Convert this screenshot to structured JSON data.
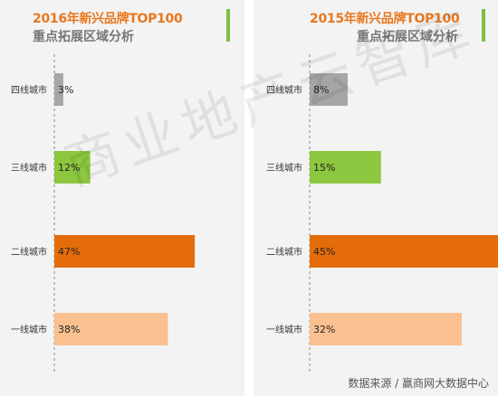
{
  "chart_data": [
    {
      "type": "bar",
      "title": "2016年新兴品牌TOP100",
      "subtitle": "重点拓展区域分析",
      "categories": [
        "四线城市",
        "三线城市",
        "二线城市",
        "一线城市"
      ],
      "values": [
        3,
        12,
        47,
        38
      ],
      "value_labels": [
        "3%",
        "12%",
        "47%",
        "38%"
      ],
      "colors": [
        "#a6a6a6",
        "#8dc63f",
        "#e46c0a",
        "#fac090"
      ],
      "xlim": [
        0,
        50
      ]
    },
    {
      "type": "bar",
      "title": "2015年新兴品牌TOP100",
      "subtitle": "重点拓展区域分析",
      "categories": [
        "四线城市",
        "三线城市",
        "二线城市",
        "一线城市"
      ],
      "values": [
        8,
        15,
        45,
        32
      ],
      "value_labels": [
        "8%",
        "15%",
        "45%",
        "32%"
      ],
      "colors": [
        "#a6a6a6",
        "#8dc63f",
        "#e46c0a",
        "#fac090"
      ],
      "xlim": [
        0,
        50
      ]
    }
  ],
  "watermark": "商业地产云智库",
  "source": "数据来源 / 赢商网大数据中心",
  "accent_color": "#7cc142",
  "title_color": "#e8771e"
}
